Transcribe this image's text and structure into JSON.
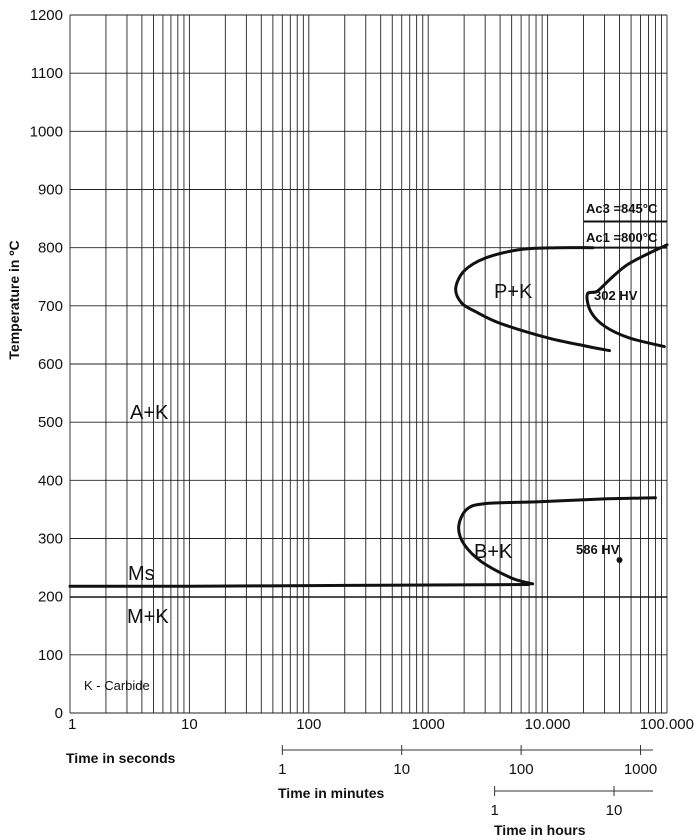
{
  "chart_data": {
    "type": "line",
    "title": "",
    "ylabel": "Temperature in ºC",
    "xlabel": "Time in seconds",
    "xscale": "log",
    "xlim": [
      1,
      100000
    ],
    "ylim": [
      0,
      1200
    ],
    "grid": true,
    "y_ticks": [
      "0",
      "100",
      "200",
      "300",
      "400",
      "500",
      "600",
      "700",
      "800",
      "900",
      "1000",
      "1100",
      "1200"
    ],
    "x_ticks": [
      "1",
      "10",
      "100",
      "1000",
      "10.000",
      "100.000"
    ],
    "secondary_axes": [
      {
        "label": "Time in minutes",
        "ticks": [
          "1",
          "10",
          "100",
          "1000"
        ]
      },
      {
        "label": "Time in hours",
        "ticks": [
          "1",
          "10"
        ]
      }
    ],
    "reference_lines": [
      {
        "label": "Ac3 =845°C",
        "y": 845
      },
      {
        "label": "Ac1 =800°C",
        "y": 800
      },
      {
        "label": "Ms",
        "y": 218
      }
    ],
    "series": [
      {
        "name": "",
        "x": [
          24000,
          12000,
          6000,
          3000,
          2000,
          1700,
          1900,
          2500,
          4000,
          10000,
          22000,
          33000
        ],
        "y": [
          800,
          800,
          797,
          782,
          760,
          730,
          705,
          690,
          670,
          645,
          630,
          623
        ]
      },
      {
        "name": "",
        "x": [
          100000,
          70000,
          46000,
          33000,
          26000,
          21500,
          23000,
          30000,
          48000,
          95000
        ],
        "y": [
          805,
          790,
          770,
          745,
          725,
          720,
          690,
          665,
          645,
          630
        ]
      },
      {
        "name": "",
        "x": [
          80000,
          30000,
          8000,
          3000,
          2100,
          1800,
          2000,
          2800,
          5000,
          7500
        ],
        "y": [
          370,
          368,
          363,
          360,
          350,
          320,
          290,
          260,
          232,
          222
        ]
      },
      {
        "name": "",
        "x": [
          1,
          10,
          100,
          1000,
          7000
        ],
        "y": [
          218,
          218,
          219,
          220,
          221
        ]
      }
    ],
    "regions": [
      {
        "label": "A+K"
      },
      {
        "label": "P+K"
      },
      {
        "label": "B+K"
      },
      {
        "label": "M+K"
      }
    ],
    "annotations": [
      "302 HV",
      "586 HV",
      "K - Carbide"
    ],
    "hardness_point": {
      "x": 40000,
      "y": 263
    }
  }
}
